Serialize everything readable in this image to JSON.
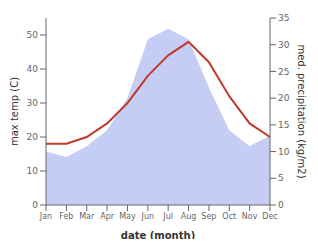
{
  "chart_data": {
    "type": "line",
    "xlabel": "date (month)",
    "ylabel": "max temp (C)",
    "y2label": "med. precipitation (kg/m2)",
    "categories": [
      "Jan",
      "Feb",
      "Mar",
      "Apr",
      "May",
      "Jun",
      "Jul",
      "Aug",
      "Sep",
      "Oct",
      "Nov",
      "Dec"
    ],
    "series": [
      {
        "type": "area",
        "axis": "y2",
        "color": "#c5cdf5",
        "values": [
          10,
          9,
          11,
          14,
          20,
          31,
          33,
          31,
          22,
          14,
          11,
          13
        ]
      },
      {
        "type": "line",
        "color": "#c0392b",
        "values": [
          18,
          18,
          20,
          24,
          30,
          38,
          44,
          48,
          42,
          32,
          24,
          20
        ]
      }
    ],
    "ylim": [
      0,
      55
    ],
    "yticks": [
      0,
      10,
      20,
      30,
      40,
      50
    ],
    "y2lim": [
      0,
      35
    ],
    "y2ticks": [
      0,
      5,
      10,
      15,
      20,
      25,
      30,
      35
    ],
    "grid": false
  }
}
